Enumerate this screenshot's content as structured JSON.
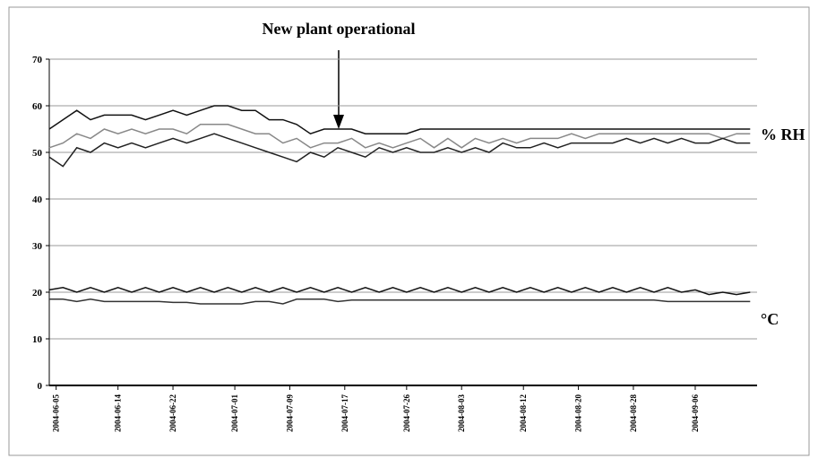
{
  "chart_data": {
    "type": "line",
    "x": [
      "2004-06-04",
      "2004-06-06",
      "2004-06-08",
      "2004-06-10",
      "2004-06-12",
      "2004-06-14",
      "2004-06-16",
      "2004-06-18",
      "2004-06-20",
      "2004-06-22",
      "2004-06-24",
      "2004-06-26",
      "2004-06-28",
      "2004-06-30",
      "2004-07-02",
      "2004-07-04",
      "2004-07-06",
      "2004-07-08",
      "2004-07-10",
      "2004-07-12",
      "2004-07-14",
      "2004-07-16",
      "2004-07-18",
      "2004-07-20",
      "2004-07-22",
      "2004-07-24",
      "2004-07-26",
      "2004-07-28",
      "2004-07-30",
      "2004-08-01",
      "2004-08-03",
      "2004-08-05",
      "2004-08-07",
      "2004-08-09",
      "2004-08-11",
      "2004-08-13",
      "2004-08-15",
      "2004-08-17",
      "2004-08-19",
      "2004-08-21",
      "2004-08-23",
      "2004-08-25",
      "2004-08-27",
      "2004-08-29",
      "2004-08-31",
      "2004-09-02",
      "2004-09-04",
      "2004-09-06",
      "2004-09-08",
      "2004-09-10",
      "2004-09-12",
      "2004-09-14"
    ],
    "series": [
      {
        "color": "#111111",
        "values": [
          55,
          57,
          59,
          57,
          58,
          58,
          58,
          57,
          58,
          59,
          58,
          59,
          60,
          60,
          59,
          59,
          57,
          57,
          56,
          54,
          55,
          55,
          55,
          54,
          54,
          54,
          54,
          55,
          55,
          55,
          55,
          55,
          55,
          55,
          55,
          55,
          55,
          55,
          55,
          55,
          55,
          55,
          55,
          55,
          55,
          55,
          55,
          55,
          55,
          55,
          55,
          55
        ]
      },
      {
        "color": "#888888",
        "values": [
          51,
          52,
          54,
          53,
          55,
          54,
          55,
          54,
          55,
          55,
          54,
          56,
          56,
          56,
          55,
          54,
          54,
          52,
          53,
          51,
          52,
          52,
          53,
          51,
          52,
          51,
          52,
          53,
          51,
          53,
          51,
          53,
          52,
          53,
          52,
          53,
          53,
          53,
          54,
          53,
          54,
          54,
          54,
          54,
          54,
          54,
          54,
          54,
          54,
          53,
          54,
          54
        ]
      },
      {
        "color": "#222222",
        "values": [
          49,
          47,
          51,
          50,
          52,
          51,
          52,
          51,
          52,
          53,
          52,
          53,
          54,
          53,
          52,
          51,
          50,
          49,
          48,
          50,
          49,
          51,
          50,
          49,
          51,
          50,
          51,
          50,
          50,
          51,
          50,
          51,
          50,
          52,
          51,
          51,
          52,
          51,
          52,
          52,
          52,
          52,
          53,
          52,
          53,
          52,
          53,
          52,
          52,
          53,
          52,
          52
        ]
      },
      {
        "color": "#111111",
        "values": [
          20.5,
          21,
          20,
          21,
          20,
          21,
          20,
          21,
          20,
          21,
          20,
          21,
          20,
          21,
          20,
          21,
          20,
          21,
          20,
          21,
          20,
          21,
          20,
          21,
          20,
          21,
          20,
          21,
          20,
          21,
          20,
          21,
          20,
          21,
          20,
          21,
          20,
          21,
          20,
          21,
          20,
          21,
          20,
          21,
          20,
          21,
          20,
          20.5,
          19.5,
          20,
          19.5,
          20
        ]
      },
      {
        "color": "#333333",
        "values": [
          18.5,
          18.5,
          18,
          18.5,
          18,
          18,
          18,
          18,
          18,
          17.8,
          17.8,
          17.5,
          17.5,
          17.5,
          17.5,
          18,
          18,
          17.5,
          18.5,
          18.5,
          18.5,
          18,
          18.3,
          18.3,
          18.3,
          18.3,
          18.3,
          18.3,
          18.3,
          18.3,
          18.3,
          18.3,
          18.3,
          18.3,
          18.3,
          18.3,
          18.3,
          18.3,
          18.3,
          18.3,
          18.3,
          18.3,
          18.3,
          18.3,
          18.3,
          18,
          18,
          18,
          18,
          18,
          18,
          18
        ]
      }
    ],
    "xlim": [
      "2004-06-04",
      "2004-09-15"
    ],
    "xticks": [
      "2004-06-05",
      "2004-06-14",
      "2004-06-22",
      "2004-07-01",
      "2004-07-09",
      "2004-07-17",
      "2004-07-26",
      "2004-08-03",
      "2004-08-12",
      "2004-08-20",
      "2004-08-28",
      "2004-09-06"
    ],
    "ylim": [
      0,
      70
    ],
    "yticks": [
      0,
      10,
      20,
      30,
      40,
      50,
      60,
      70
    ],
    "grid": true,
    "annotations": [
      "New plant operational",
      "% RH",
      "°C"
    ]
  }
}
